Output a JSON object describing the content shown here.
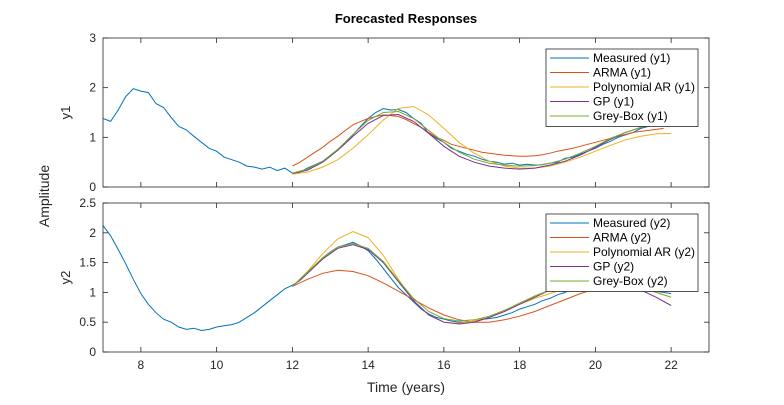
{
  "chart_data": {
    "type": "line",
    "title": "Forecasted Responses",
    "xlabel": "Time (years)",
    "ylabel": "Amplitude",
    "xlim": [
      7,
      23
    ],
    "xticks": [
      "8",
      "10",
      "12",
      "14",
      "16",
      "18",
      "20",
      "22"
    ],
    "xtick_values": [
      8,
      10,
      12,
      14,
      16,
      18,
      20,
      22
    ],
    "grid": false,
    "legend_location": "top-right",
    "panels": [
      {
        "ylabel": "y1",
        "ylim": [
          0,
          3
        ],
        "yticks": [
          "0",
          "1",
          "2",
          "3"
        ],
        "ytick_values": [
          0,
          1,
          2,
          3
        ],
        "series": [
          {
            "name": "Measured (y1)",
            "color": "#0072BD",
            "x": [
              7.0,
              7.2,
              7.4,
              7.6,
              7.8,
              8.0,
              8.2,
              8.4,
              8.6,
              8.8,
              9.0,
              9.2,
              9.4,
              9.6,
              9.8,
              10.0,
              10.2,
              10.4,
              10.6,
              10.8,
              11.0,
              11.2,
              11.4,
              11.6,
              11.8,
              12.0,
              12.2,
              12.4,
              12.6,
              12.8,
              13.0,
              13.2,
              13.4,
              13.6,
              13.8,
              14.0,
              14.2,
              14.4,
              14.6,
              14.8,
              15.0,
              15.2,
              15.4,
              15.6,
              15.8,
              16.0,
              16.2,
              16.4,
              16.6,
              16.8,
              17.0,
              17.2,
              17.4,
              17.6,
              17.8,
              18.0,
              18.2,
              18.4,
              18.6,
              18.8,
              19.0,
              19.2,
              19.4,
              19.6,
              19.8,
              20.0,
              20.2,
              20.4,
              20.6,
              20.8,
              21.0,
              21.2,
              21.4,
              21.6,
              21.8,
              22.0
            ],
            "y": [
              1.38,
              1.32,
              1.55,
              1.82,
              1.98,
              1.93,
              1.9,
              1.68,
              1.6,
              1.4,
              1.22,
              1.15,
              1.02,
              0.9,
              0.78,
              0.72,
              0.6,
              0.55,
              0.5,
              0.42,
              0.4,
              0.36,
              0.4,
              0.33,
              0.38,
              0.28,
              0.3,
              0.38,
              0.45,
              0.52,
              0.62,
              0.75,
              0.88,
              1.05,
              1.22,
              1.38,
              1.5,
              1.58,
              1.55,
              1.56,
              1.5,
              1.38,
              1.28,
              1.08,
              0.98,
              0.9,
              0.78,
              0.72,
              0.66,
              0.62,
              0.56,
              0.52,
              0.5,
              0.46,
              0.48,
              0.44,
              0.46,
              0.44,
              0.45,
              0.48,
              0.5,
              0.58,
              0.6,
              0.66,
              0.72,
              0.78,
              0.86,
              0.92,
              1.0,
              1.05,
              1.1,
              1.18,
              1.22,
              1.26,
              1.3,
              1.34
            ]
          },
          {
            "name": "ARMA (y1)",
            "color": "#D95319",
            "x": [
              12.0,
              12.2,
              12.4,
              12.6,
              12.8,
              13.0,
              13.2,
              13.4,
              13.6,
              13.8,
              14.0,
              14.2,
              14.4,
              14.6,
              14.8,
              15.0,
              15.2,
              15.4,
              15.6,
              15.8,
              16.0,
              16.2,
              16.4,
              16.6,
              16.8,
              17.0,
              17.2,
              17.4,
              17.6,
              17.8,
              18.0,
              18.2,
              18.4,
              18.6,
              18.8,
              19.0,
              19.2,
              19.4,
              19.6,
              19.8,
              20.0,
              20.2,
              20.4,
              20.6,
              20.8,
              21.0,
              21.2,
              21.4,
              21.6,
              21.8
            ],
            "y": [
              0.42,
              0.5,
              0.6,
              0.7,
              0.8,
              0.92,
              1.02,
              1.14,
              1.25,
              1.32,
              1.38,
              1.42,
              1.45,
              1.44,
              1.42,
              1.36,
              1.28,
              1.2,
              1.1,
              1.0,
              0.94,
              0.86,
              0.82,
              0.78,
              0.74,
              0.7,
              0.68,
              0.66,
              0.64,
              0.63,
              0.62,
              0.62,
              0.63,
              0.65,
              0.68,
              0.72,
              0.75,
              0.78,
              0.82,
              0.86,
              0.9,
              0.94,
              0.98,
              1.02,
              1.06,
              1.1,
              1.12,
              1.14,
              1.16,
              1.18
            ]
          },
          {
            "name": "Polynomial AR (y1)",
            "color": "#EDB120",
            "x": [
              12.0,
              12.4,
              12.8,
              13.2,
              13.6,
              14.0,
              14.4,
              14.8,
              15.2,
              15.6,
              16.0,
              16.4,
              16.8,
              17.2,
              17.6,
              18.0,
              18.4,
              18.8,
              19.2,
              19.6,
              20.0,
              20.4,
              20.8,
              21.2,
              21.6,
              22.0
            ],
            "y": [
              0.26,
              0.3,
              0.4,
              0.55,
              0.78,
              1.05,
              1.35,
              1.58,
              1.62,
              1.45,
              1.18,
              0.9,
              0.68,
              0.52,
              0.42,
              0.38,
              0.38,
              0.42,
              0.5,
              0.6,
              0.72,
              0.84,
              0.95,
              1.02,
              1.07,
              1.08
            ]
          },
          {
            "name": "GP (y1)",
            "color": "#7E2F8E",
            "x": [
              12.0,
              12.4,
              12.8,
              13.2,
              13.6,
              14.0,
              14.4,
              14.8,
              15.2,
              15.6,
              16.0,
              16.4,
              16.8,
              17.2,
              17.6,
              18.0,
              18.4,
              18.8,
              19.2,
              19.6,
              20.0,
              20.4,
              20.8,
              21.2,
              21.6,
              22.0
            ],
            "y": [
              0.27,
              0.34,
              0.5,
              0.74,
              1.02,
              1.28,
              1.44,
              1.46,
              1.32,
              1.08,
              0.82,
              0.62,
              0.5,
              0.42,
              0.38,
              0.36,
              0.38,
              0.44,
              0.52,
              0.64,
              0.8,
              0.96,
              1.1,
              1.2,
              1.28,
              1.32
            ]
          },
          {
            "name": "Grey-Box (y1)",
            "color": "#77AC30",
            "x": [
              12.0,
              12.4,
              12.8,
              13.2,
              13.6,
              14.0,
              14.4,
              14.8,
              15.2,
              15.6,
              16.0,
              16.4,
              16.8,
              17.2,
              17.6,
              18.0,
              18.4,
              18.8,
              19.2,
              19.6,
              20.0,
              20.4,
              20.8,
              21.2,
              21.6,
              22.0
            ],
            "y": [
              0.28,
              0.36,
              0.52,
              0.76,
              1.06,
              1.34,
              1.5,
              1.52,
              1.38,
              1.14,
              0.9,
              0.7,
              0.56,
              0.48,
              0.44,
              0.42,
              0.43,
              0.48,
              0.56,
              0.68,
              0.82,
              0.98,
              1.1,
              1.2,
              1.27,
              1.3
            ]
          }
        ]
      },
      {
        "ylabel": "y2",
        "ylim": [
          0,
          2.5
        ],
        "yticks": [
          "0",
          "0.5",
          "1",
          "1.5",
          "2",
          "2.5"
        ],
        "ytick_values": [
          0,
          0.5,
          1,
          1.5,
          2,
          2.5
        ],
        "series": [
          {
            "name": "Measured (y2)",
            "color": "#0072BD",
            "x": [
              7.0,
              7.2,
              7.4,
              7.6,
              7.8,
              8.0,
              8.2,
              8.4,
              8.6,
              8.8,
              9.0,
              9.2,
              9.4,
              9.6,
              9.8,
              10.0,
              10.2,
              10.4,
              10.6,
              10.8,
              11.0,
              11.2,
              11.4,
              11.6,
              11.8,
              12.0,
              12.2,
              12.4,
              12.6,
              12.8,
              13.0,
              13.2,
              13.4,
              13.6,
              13.8,
              14.0,
              14.2,
              14.4,
              14.6,
              14.8,
              15.0,
              15.2,
              15.4,
              15.6,
              15.8,
              16.0,
              16.2,
              16.4,
              16.6,
              16.8,
              17.0,
              17.2,
              17.4,
              17.6,
              17.8,
              18.0,
              18.2,
              18.4,
              18.6,
              18.8,
              19.0,
              19.2,
              19.4,
              19.6,
              19.8,
              20.0,
              20.2,
              20.4,
              20.6,
              20.8,
              21.0,
              21.2,
              21.4,
              21.6,
              21.8,
              22.0
            ],
            "y": [
              2.12,
              1.95,
              1.72,
              1.48,
              1.22,
              0.98,
              0.8,
              0.66,
              0.55,
              0.5,
              0.42,
              0.38,
              0.4,
              0.36,
              0.38,
              0.42,
              0.44,
              0.46,
              0.5,
              0.58,
              0.66,
              0.76,
              0.86,
              0.96,
              1.06,
              1.12,
              1.2,
              1.32,
              1.45,
              1.58,
              1.68,
              1.76,
              1.8,
              1.84,
              1.78,
              1.7,
              1.56,
              1.4,
              1.24,
              1.08,
              0.96,
              0.84,
              0.72,
              0.64,
              0.58,
              0.55,
              0.52,
              0.5,
              0.5,
              0.52,
              0.55,
              0.56,
              0.58,
              0.62,
              0.66,
              0.72,
              0.76,
              0.8,
              0.86,
              0.9,
              0.96,
              1.0,
              1.06,
              1.1,
              1.14,
              1.16,
              1.18,
              1.16,
              1.14,
              1.1,
              1.08,
              1.06,
              1.04,
              1.02,
              1.0,
              0.98
            ]
          },
          {
            "name": "ARMA (y2)",
            "color": "#D95319",
            "x": [
              12.0,
              12.4,
              12.8,
              13.2,
              13.6,
              14.0,
              14.4,
              14.8,
              15.2,
              15.6,
              16.0,
              16.4,
              16.8,
              17.2,
              17.6,
              18.0,
              18.4,
              18.8,
              19.2,
              19.6,
              20.0,
              20.4,
              20.8,
              21.2,
              21.6,
              22.0
            ],
            "y": [
              1.1,
              1.22,
              1.32,
              1.37,
              1.35,
              1.28,
              1.16,
              1.02,
              0.88,
              0.74,
              0.62,
              0.54,
              0.5,
              0.5,
              0.54,
              0.6,
              0.68,
              0.78,
              0.88,
              0.98,
              1.06,
              1.12,
              1.15,
              1.15,
              1.12,
              1.06
            ]
          },
          {
            "name": "Polynomial AR (y2)",
            "color": "#EDB120",
            "x": [
              12.0,
              12.4,
              12.8,
              13.2,
              13.6,
              14.0,
              14.4,
              14.8,
              15.2,
              15.6,
              16.0,
              16.4,
              16.8,
              17.2,
              17.6,
              18.0,
              18.4,
              18.8,
              19.2,
              19.6,
              20.0,
              20.4,
              20.8,
              21.2,
              21.6,
              22.0
            ],
            "y": [
              1.1,
              1.35,
              1.65,
              1.9,
              2.02,
              1.92,
              1.62,
              1.22,
              0.86,
              0.62,
              0.5,
              0.48,
              0.52,
              0.6,
              0.7,
              0.8,
              0.9,
              0.98,
              1.06,
              1.12,
              1.16,
              1.16,
              1.12,
              1.06,
              1.0,
              0.92
            ]
          },
          {
            "name": "GP (y2)",
            "color": "#7E2F8E",
            "x": [
              12.0,
              12.4,
              12.8,
              13.2,
              13.6,
              14.0,
              14.4,
              14.8,
              15.2,
              15.6,
              16.0,
              16.4,
              16.8,
              17.2,
              17.6,
              18.0,
              18.4,
              18.8,
              19.2,
              19.6,
              20.0,
              20.4,
              20.8,
              21.2,
              21.6,
              22.0
            ],
            "y": [
              1.1,
              1.32,
              1.56,
              1.74,
              1.8,
              1.72,
              1.5,
              1.18,
              0.86,
              0.62,
              0.5,
              0.47,
              0.5,
              0.58,
              0.68,
              0.8,
              0.92,
              1.04,
              1.14,
              1.2,
              1.22,
              1.2,
              1.14,
              1.04,
              0.92,
              0.78
            ]
          },
          {
            "name": "Grey-Box (y2)",
            "color": "#77AC30",
            "x": [
              12.0,
              12.4,
              12.8,
              13.2,
              13.6,
              14.0,
              14.4,
              14.8,
              15.2,
              15.6,
              16.0,
              16.4,
              16.8,
              17.2,
              17.6,
              18.0,
              18.4,
              18.8,
              19.2,
              19.6,
              20.0,
              20.4,
              20.8,
              21.2,
              21.6,
              22.0
            ],
            "y": [
              1.1,
              1.34,
              1.58,
              1.76,
              1.82,
              1.74,
              1.52,
              1.2,
              0.9,
              0.68,
              0.56,
              0.52,
              0.54,
              0.6,
              0.7,
              0.82,
              0.94,
              1.04,
              1.12,
              1.18,
              1.2,
              1.18,
              1.14,
              1.08,
              1.0,
              0.92
            ]
          }
        ]
      }
    ]
  }
}
